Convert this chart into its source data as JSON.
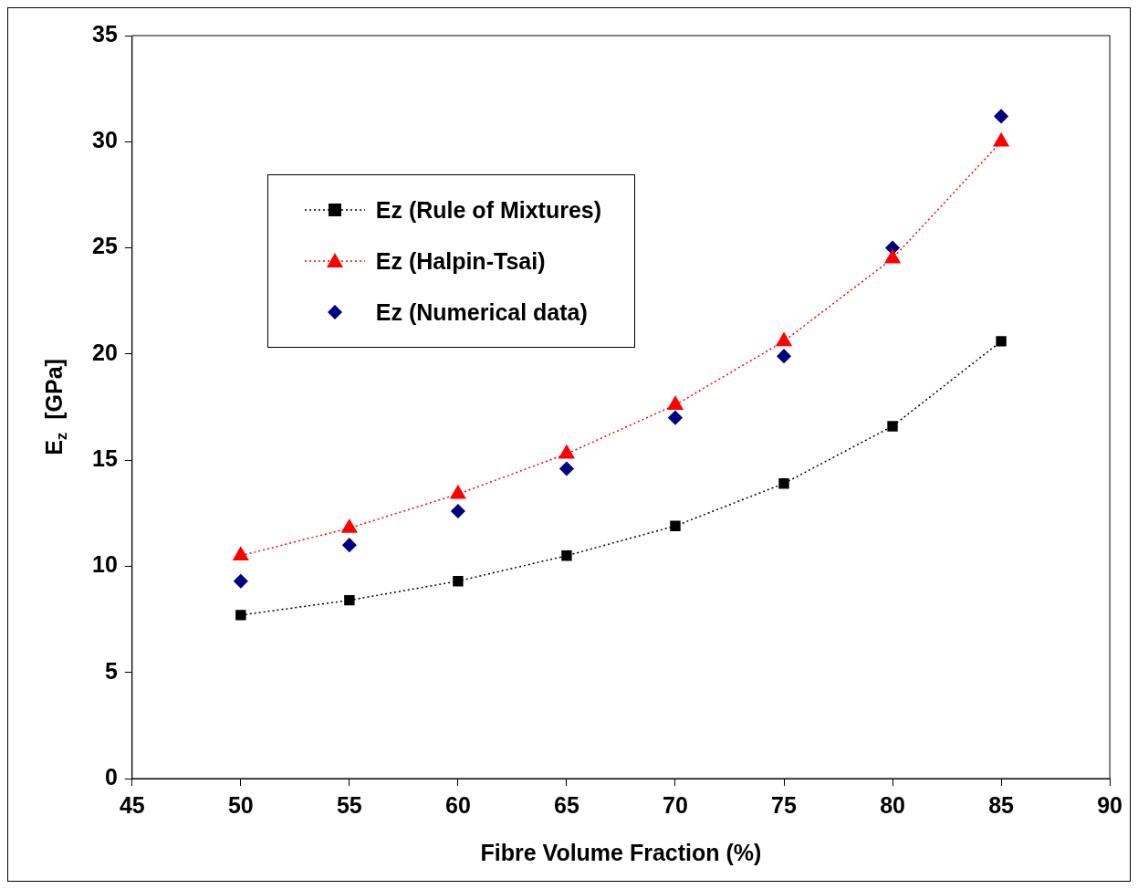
{
  "chart_data": {
    "type": "line",
    "xlabel": "Fibre Volume Fraction (%)",
    "ylabel": "E$_{z}$  [GPa]",
    "x": [
      50,
      55,
      60,
      65,
      70,
      75,
      80,
      85
    ],
    "xlim": [
      45,
      90
    ],
    "xticks": [
      45,
      50,
      55,
      60,
      65,
      70,
      75,
      80,
      85,
      90
    ],
    "ylim": [
      0,
      35
    ],
    "yticks": [
      0,
      5,
      10,
      15,
      20,
      25,
      30,
      35
    ],
    "grid": false,
    "legend": "top left",
    "series": [
      {
        "name": "Ez (Rule of Mixtures)",
        "color": "#000000",
        "marker": "square",
        "line_style": "dotted",
        "values": [
          7.7,
          8.4,
          9.3,
          10.5,
          11.9,
          13.9,
          16.6,
          20.6
        ]
      },
      {
        "name": "Ez (Halpin-Tsai)",
        "color": "#ff0000",
        "marker": "triangle",
        "line_style": "dotted",
        "values": [
          10.5,
          11.8,
          13.4,
          15.3,
          17.6,
          20.6,
          24.5,
          30
        ]
      },
      {
        "name": "Ez (Numerical data)",
        "type": "scatter",
        "color": "#000080",
        "marker": "diamond",
        "values": [
          9.3,
          11,
          12.6,
          14.6,
          17,
          19.9,
          25,
          31.2
        ]
      }
    ]
  }
}
